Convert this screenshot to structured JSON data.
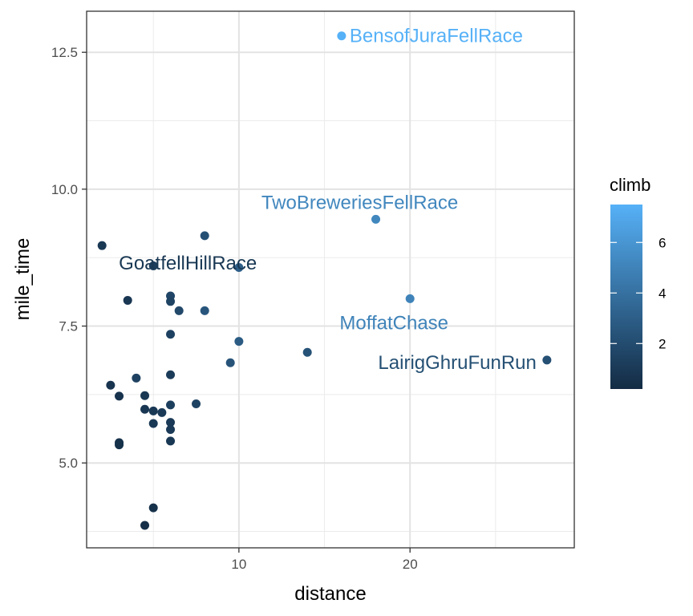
{
  "chart_data": {
    "type": "scatter",
    "xlabel": "distance",
    "ylabel": "mile_time",
    "xlim": [
      1.1,
      29.6
    ],
    "ylim": [
      3.45,
      13.25
    ],
    "x_ticks": [
      10,
      20
    ],
    "x_tick_labels": [
      "10",
      "20"
    ],
    "y_ticks": [
      5.0,
      7.5,
      10.0,
      12.5
    ],
    "y_tick_labels": [
      "5.0",
      "7.5",
      "10.0",
      "12.5"
    ],
    "grid": true,
    "color_scale": {
      "title": "climb",
      "low_color": "#132B43",
      "high_color": "#56B1F7",
      "range": [
        0.2,
        7.5
      ],
      "ticks": [
        2,
        4,
        6
      ],
      "tick_labels": [
        "2",
        "4",
        "6"
      ],
      "position": "right"
    },
    "points": [
      {
        "x": 16,
        "y": 12.8,
        "climb": 7.5,
        "label": "BensofJuraFellRace"
      },
      {
        "x": 18,
        "y": 9.45,
        "climb": 5.2,
        "label": "TwoBreweriesFellRace"
      },
      {
        "x": 20,
        "y": 8.0,
        "climb": 5.0,
        "label": "MoffatChase"
      },
      {
        "x": 28,
        "y": 6.88,
        "climb": 2.2,
        "label": "LairigGhruFunRun"
      },
      {
        "x": 2,
        "y": 8.97,
        "climb": 0.9,
        "label": "GoatfellHillRace"
      },
      {
        "x": 14,
        "y": 7.02,
        "climb": 2.3
      },
      {
        "x": 8,
        "y": 9.15,
        "climb": 2.2
      },
      {
        "x": 10,
        "y": 8.57,
        "climb": 3.0
      },
      {
        "x": 5,
        "y": 8.6,
        "climb": 1.2
      },
      {
        "x": 3.5,
        "y": 7.97,
        "climb": 0.8
      },
      {
        "x": 6,
        "y": 8.05,
        "climb": 1.6
      },
      {
        "x": 6,
        "y": 7.95,
        "climb": 1.5
      },
      {
        "x": 6.5,
        "y": 7.78,
        "climb": 1.8
      },
      {
        "x": 8,
        "y": 7.78,
        "climb": 2.5
      },
      {
        "x": 6,
        "y": 7.35,
        "climb": 1.4
      },
      {
        "x": 10,
        "y": 7.22,
        "climb": 2.8
      },
      {
        "x": 9.5,
        "y": 6.83,
        "climb": 2.4
      },
      {
        "x": 6,
        "y": 6.61,
        "climb": 1.1
      },
      {
        "x": 4,
        "y": 6.55,
        "climb": 1.4
      },
      {
        "x": 2.5,
        "y": 6.42,
        "climb": 0.7
      },
      {
        "x": 3,
        "y": 6.22,
        "climb": 0.6
      },
      {
        "x": 4.5,
        "y": 6.23,
        "climb": 0.9
      },
      {
        "x": 7.5,
        "y": 6.08,
        "climb": 1.5
      },
      {
        "x": 6,
        "y": 6.06,
        "climb": 1.3
      },
      {
        "x": 4.5,
        "y": 5.98,
        "climb": 0.8
      },
      {
        "x": 5,
        "y": 5.95,
        "climb": 0.9
      },
      {
        "x": 5.5,
        "y": 5.92,
        "climb": 1.0
      },
      {
        "x": 5,
        "y": 5.72,
        "climb": 0.9
      },
      {
        "x": 6,
        "y": 5.74,
        "climb": 1.0
      },
      {
        "x": 6,
        "y": 5.61,
        "climb": 1.0
      },
      {
        "x": 6,
        "y": 5.4,
        "climb": 0.9
      },
      {
        "x": 3,
        "y": 5.37,
        "climb": 0.5
      },
      {
        "x": 3,
        "y": 5.33,
        "climb": 0.5
      },
      {
        "x": 5,
        "y": 4.18,
        "climb": 0.5
      },
      {
        "x": 4.5,
        "y": 3.86,
        "climb": 0.4
      }
    ]
  }
}
